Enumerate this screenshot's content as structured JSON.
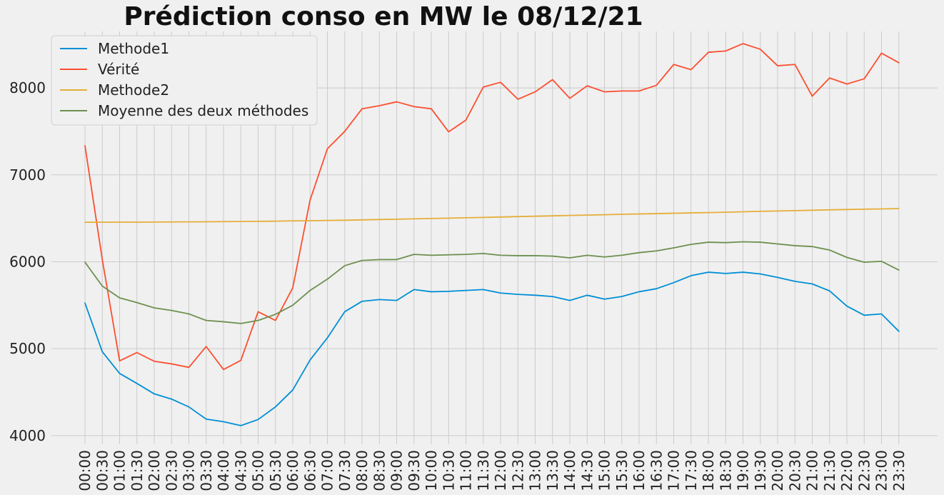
{
  "chart_data": {
    "type": "line",
    "title": "Prédiction conso en MW le 08/12/21",
    "xlabel": "",
    "ylabel": "",
    "ylim": [
      3900,
      8650
    ],
    "y_ticks": [
      4000,
      5000,
      6000,
      7000,
      8000
    ],
    "grid": true,
    "legend_position": "top-left",
    "x": [
      "00:00",
      "00:30",
      "01:00",
      "01:30",
      "02:00",
      "02:30",
      "03:00",
      "03:30",
      "04:00",
      "04:30",
      "05:00",
      "05:30",
      "06:00",
      "06:30",
      "07:00",
      "07:30",
      "08:00",
      "08:30",
      "09:00",
      "09:30",
      "10:00",
      "10:30",
      "11:00",
      "11:30",
      "12:00",
      "12:30",
      "13:00",
      "13:30",
      "14:00",
      "14:30",
      "15:00",
      "15:30",
      "16:00",
      "16:30",
      "17:00",
      "17:30",
      "18:00",
      "18:30",
      "19:00",
      "19:30",
      "20:00",
      "20:30",
      "21:00",
      "21:30",
      "22:00",
      "22:30",
      "23:00",
      "23:30"
    ],
    "series": [
      {
        "name": "Methode1",
        "color": "#008fd5",
        "values": [
          5525,
          4965,
          4715,
          4600,
          4480,
          4420,
          4330,
          4190,
          4160,
          4115,
          4185,
          4330,
          4525,
          4870,
          5125,
          5425,
          5545,
          5565,
          5555,
          5680,
          5655,
          5660,
          5670,
          5680,
          5640,
          5625,
          5615,
          5600,
          5555,
          5615,
          5570,
          5600,
          5655,
          5690,
          5760,
          5840,
          5880,
          5865,
          5880,
          5860,
          5820,
          5775,
          5745,
          5665,
          5490,
          5385,
          5400,
          5200
        ]
      },
      {
        "name": "Vérité",
        "color": "#fc4f30",
        "values": [
          7335,
          6025,
          4860,
          4955,
          4855,
          4825,
          4785,
          5025,
          4760,
          4865,
          5425,
          5325,
          5700,
          6710,
          7300,
          7500,
          7760,
          7795,
          7840,
          7785,
          7760,
          7495,
          7630,
          8010,
          8065,
          7870,
          7955,
          8095,
          7880,
          8025,
          7955,
          7965,
          7965,
          8030,
          8270,
          8210,
          8410,
          8425,
          8510,
          8445,
          8255,
          8270,
          7905,
          8115,
          8045,
          8105,
          8400,
          8290
        ]
      },
      {
        "name": "Methode2",
        "color": "#e5ae38",
        "values": [
          6455,
          6455,
          6456,
          6456,
          6457,
          6458,
          6459,
          6460,
          6462,
          6463,
          6465,
          6467,
          6470,
          6472,
          6475,
          6478,
          6482,
          6486,
          6490,
          6494,
          6498,
          6502,
          6506,
          6510,
          6515,
          6520,
          6524,
          6528,
          6533,
          6537,
          6541,
          6546,
          6550,
          6554,
          6558,
          6562,
          6566,
          6570,
          6575,
          6580,
          6584,
          6588,
          6593,
          6597,
          6601,
          6605,
          6608,
          6612
        ]
      },
      {
        "name": "Moyenne des deux méthodes",
        "color": "#6d904f",
        "values": [
          5995,
          5720,
          5585,
          5530,
          5470,
          5440,
          5400,
          5325,
          5310,
          5290,
          5325,
          5395,
          5500,
          5670,
          5800,
          5955,
          6015,
          6025,
          6025,
          6085,
          6075,
          6080,
          6085,
          6095,
          6075,
          6070,
          6070,
          6065,
          6045,
          6075,
          6055,
          6075,
          6105,
          6125,
          6160,
          6200,
          6225,
          6220,
          6230,
          6225,
          6205,
          6185,
          6175,
          6135,
          6050,
          5995,
          6005,
          5905
        ]
      }
    ]
  }
}
